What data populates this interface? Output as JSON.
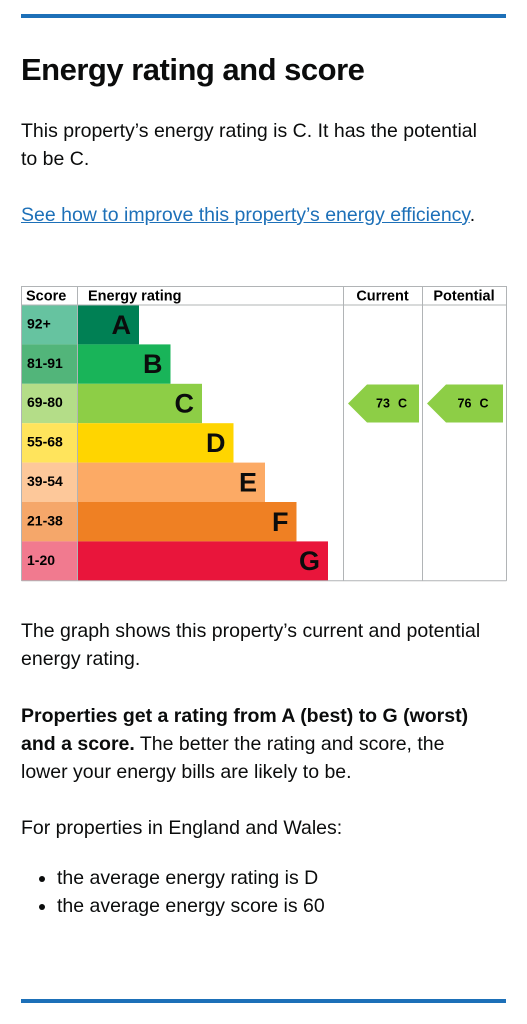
{
  "heading": "Energy rating and score",
  "intro": "This property’s energy rating is C. It has the potential to be C.",
  "link": {
    "text": "See how to improve this property’s energy efficiency",
    "suffix": "."
  },
  "chart": {
    "headers": [
      "Score",
      "Energy rating",
      "Current",
      "Potential"
    ],
    "bands": [
      {
        "score": "92+",
        "rating": "A",
        "color": "#008054",
        "light": "#66c3a0"
      },
      {
        "score": "81-91",
        "rating": "B",
        "color": "#19b459",
        "light": "#52b57a"
      },
      {
        "score": "69-80",
        "rating": "C",
        "color": "#8dce46",
        "light": "#b4dd88"
      },
      {
        "score": "55-68",
        "rating": "D",
        "color": "#ffd500",
        "light": "#ffe45c"
      },
      {
        "score": "39-54",
        "rating": "E",
        "color": "#fcaa65",
        "light": "#fdc89a"
      },
      {
        "score": "21-38",
        "rating": "F",
        "color": "#ef8023",
        "light": "#f5a76a"
      },
      {
        "score": "1-20",
        "rating": "G",
        "color": "#e9153b",
        "light": "#f17a8f"
      }
    ],
    "current": {
      "score": 73,
      "rating": "C"
    },
    "potential": {
      "score": 76,
      "rating": "C"
    }
  },
  "graph_note": "The graph shows this property’s current and potential energy rating.",
  "explain": {
    "bold": "Properties get a rating from A (best) to G (worst) and a score.",
    "rest": " The better the rating and score, the lower your energy bills are likely to be."
  },
  "region": "For properties in England and Wales:",
  "bullets": [
    "the average energy rating is D",
    "the average energy score is 60"
  ]
}
